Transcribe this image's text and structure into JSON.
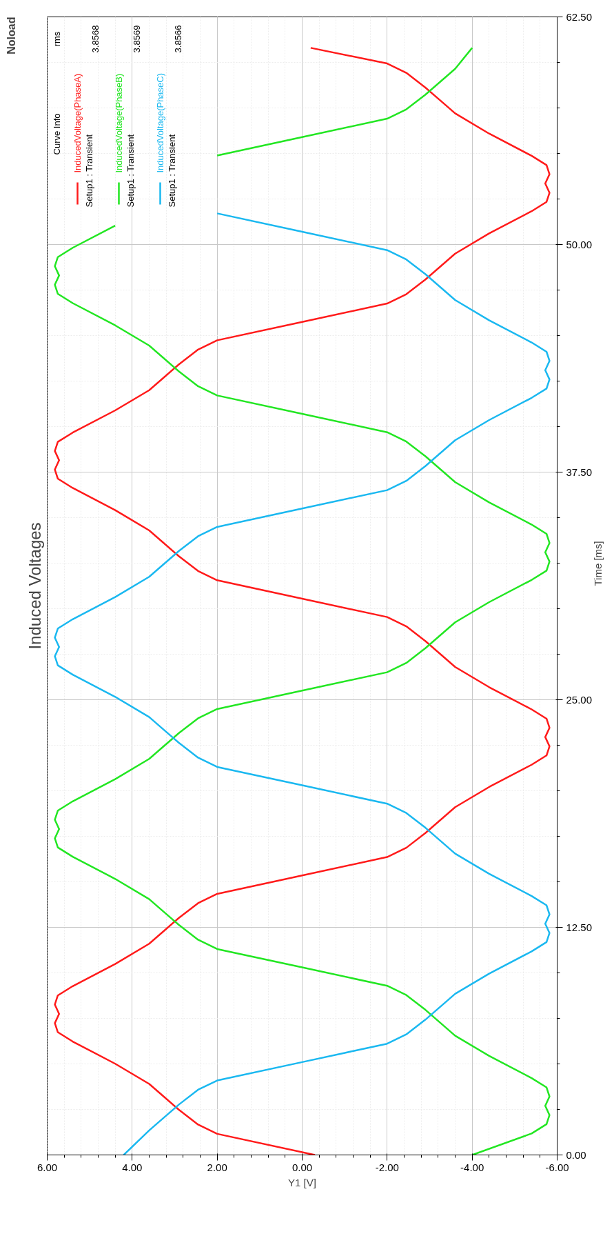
{
  "chart_data": {
    "type": "line",
    "title": "Induced Voltages",
    "xlabel": "Y1 [V]",
    "ylabel": "Time [ms]",
    "legend_title": "Curve Info",
    "annotations": [
      "Noload",
      "rms",
      "3.8568",
      "3.8569",
      "3.8566",
      "Setup1 : Transient",
      "Setup1 : Transient",
      "Setup1 : Transient"
    ],
    "xlim": [
      6,
      -6
    ],
    "ylim": [
      0,
      62.5
    ],
    "yticks": [
      {
        "value": 0,
        "label": "0.00"
      },
      {
        "value": 12.5,
        "label": "12.50"
      },
      {
        "value": 25,
        "label": "25.00"
      },
      {
        "value": 37.5,
        "label": "37.50"
      },
      {
        "value": 50,
        "label": "50.00"
      },
      {
        "value": 62.5,
        "label": "62.50"
      }
    ],
    "xticks": [
      {
        "value": -6,
        "label": "-6.00"
      },
      {
        "value": -4,
        "label": "-4.00"
      },
      {
        "value": -2,
        "label": "-2.00"
      },
      {
        "value": 0,
        "label": "0.00"
      },
      {
        "value": 2,
        "label": "2.00"
      },
      {
        "value": 4,
        "label": "4.00"
      },
      {
        "value": 6,
        "label": "6.00"
      }
    ],
    "grid": true,
    "legend": "top left",
    "series": [
      {
        "name": "InducedVoltage(PhaseA)",
        "color": "#ff1a1a",
        "values": [
          0,
          1.16,
          1.67,
          2.48,
          3.19,
          3.9,
          5.01,
          6.23,
          6.74,
          7.24,
          7.75,
          8.26,
          8.76,
          9.27,
          10.49,
          11.6,
          12.31,
          13.02,
          13.83,
          14.34,
          15.35,
          16.36,
          16.87,
          17.68,
          18.39,
          19.1,
          20.21,
          21.43,
          21.94,
          22.44,
          22.95,
          23.46,
          23.96,
          24.47,
          25.69,
          26.8,
          27.51,
          28.22,
          29.03,
          29.54,
          30.55,
          31.56,
          32.07,
          32.88,
          33.59,
          34.3,
          35.41,
          36.63,
          37.14,
          37.64,
          38.15,
          38.66,
          39.16,
          39.67,
          40.89,
          42.0,
          42.71,
          43.42,
          44.23,
          44.74,
          45.75,
          46.76,
          47.27,
          48.08,
          48.79,
          49.5,
          50.61,
          51.83,
          52.34,
          52.84,
          53.35,
          53.86,
          54.36,
          54.87,
          56.09,
          57.2,
          57.91,
          58.62,
          59.43,
          59.94,
          60.8
        ],
        "x": [
          -0.3,
          2.0,
          2.45,
          2.9,
          3.25,
          3.6,
          4.4,
          5.4,
          5.75,
          5.82,
          5.72,
          5.82,
          5.75,
          5.4,
          4.4,
          3.6,
          3.25,
          2.9,
          2.45,
          2.0,
          0,
          -2.0,
          -2.45,
          -2.9,
          -3.25,
          -3.6,
          -4.4,
          -5.4,
          -5.75,
          -5.82,
          -5.72,
          -5.82,
          -5.75,
          -5.4,
          -4.4,
          -3.6,
          -3.25,
          -2.9,
          -2.45,
          -2.0,
          0,
          2.0,
          2.45,
          2.9,
          3.25,
          3.6,
          4.4,
          5.4,
          5.75,
          5.82,
          5.72,
          5.82,
          5.75,
          5.4,
          4.4,
          3.6,
          3.25,
          2.9,
          2.45,
          2.0,
          0,
          -2.0,
          -2.45,
          -2.9,
          -3.25,
          -3.6,
          -4.4,
          -5.4,
          -5.75,
          -5.82,
          -5.72,
          -5.82,
          -5.75,
          -5.4,
          -4.4,
          -3.6,
          -3.25,
          -2.9,
          -2.45,
          -2.0,
          -0.2
        ]
      },
      {
        "name": "InducedVoltage(PhaseB)",
        "color": "#22e622",
        "values": [
          0,
          1.18,
          1.69,
          2.19,
          2.7,
          3.21,
          3.71,
          4.22,
          5.44,
          6.55,
          7.26,
          7.97,
          8.78,
          9.29,
          10.3,
          11.31,
          11.82,
          12.63,
          13.34,
          14.05,
          15.16,
          16.38,
          16.89,
          17.39,
          17.9,
          18.41,
          18.91,
          19.42,
          20.64,
          21.75,
          22.46,
          23.17,
          23.98,
          24.49,
          25.5,
          26.51,
          27.02,
          27.83,
          28.54,
          29.25,
          30.36,
          31.58,
          32.09,
          32.59,
          33.1,
          33.61,
          34.11,
          34.62,
          35.84,
          36.95,
          37.66,
          38.37,
          39.18,
          39.69,
          40.7,
          41.71,
          42.22,
          43.03,
          43.74,
          44.45,
          45.56,
          46.78,
          47.29,
          47.79,
          48.3,
          48.81,
          49.31,
          49.82,
          51.04,
          null,
          54.89,
          55.9,
          56.91,
          57.42,
          58.23,
          58.94,
          59.65,
          60.8
        ],
        "x": [
          -4.0,
          -5.4,
          -5.75,
          -5.82,
          -5.72,
          -5.82,
          -5.75,
          -5.4,
          -4.4,
          -3.6,
          -3.25,
          -2.9,
          -2.45,
          -2.0,
          0,
          2.0,
          2.45,
          2.9,
          3.25,
          3.6,
          4.4,
          5.4,
          5.75,
          5.82,
          5.72,
          5.82,
          5.75,
          5.4,
          4.4,
          3.6,
          3.25,
          2.9,
          2.45,
          2.0,
          0,
          -2.0,
          -2.45,
          -2.9,
          -3.25,
          -3.6,
          -4.4,
          -5.4,
          -5.75,
          -5.82,
          -5.72,
          -5.82,
          -5.75,
          -5.4,
          -4.4,
          -3.6,
          -3.25,
          -2.9,
          -2.45,
          -2.0,
          0,
          2.0,
          2.45,
          2.9,
          3.25,
          3.6,
          4.4,
          5.4,
          5.75,
          5.82,
          5.72,
          5.82,
          5.75,
          5.4,
          4.4,
          3.6,
          2.0,
          0,
          -2.0,
          -2.45,
          -2.9,
          -3.25,
          -3.6,
          -4.0
        ]
      },
      {
        "name": "InducedVoltage(PhaseC)",
        "color": "#1ab8f0",
        "values": [
          0,
          1.35,
          2.06,
          2.77,
          3.58,
          4.09,
          5.1,
          6.11,
          6.62,
          7.43,
          8.14,
          8.85,
          9.96,
          11.18,
          11.69,
          12.19,
          12.7,
          13.21,
          13.71,
          14.22,
          15.44,
          16.55,
          17.26,
          17.97,
          18.78,
          19.29,
          20.3,
          21.31,
          21.82,
          22.63,
          23.34,
          24.05,
          25.16,
          26.38,
          26.89,
          27.39,
          27.9,
          28.41,
          28.91,
          29.42,
          30.64,
          31.75,
          32.46,
          33.17,
          33.98,
          34.49,
          35.5,
          36.51,
          37.02,
          37.83,
          38.54,
          39.25,
          40.36,
          41.58,
          42.09,
          42.59,
          43.1,
          43.61,
          44.11,
          44.62,
          45.84,
          46.95,
          47.66,
          48.37,
          49.18,
          49.69,
          50.7,
          51.71
        ],
        "x": [
          4.2,
          3.6,
          3.25,
          2.9,
          2.45,
          2.0,
          0,
          -2.0,
          -2.45,
          -2.9,
          -3.25,
          -3.6,
          -4.4,
          -5.4,
          -5.75,
          -5.82,
          -5.72,
          -5.82,
          -5.75,
          -5.4,
          -4.4,
          -3.6,
          -3.25,
          -2.9,
          -2.45,
          -2.0,
          0,
          2.0,
          2.45,
          2.9,
          3.25,
          3.6,
          4.4,
          5.4,
          5.75,
          5.82,
          5.72,
          5.82,
          5.75,
          5.4,
          4.4,
          3.6,
          3.25,
          2.9,
          2.45,
          2.0,
          0,
          -2.0,
          -2.45,
          -2.9,
          -3.25,
          -3.6,
          -4.4,
          -5.4,
          -5.75,
          -5.82,
          -5.72,
          -5.82,
          -5.75,
          -5.4,
          -4.4,
          -3.6,
          -3.25,
          -2.9,
          -2.45,
          -2.0,
          0,
          2.0
        ]
      }
    ]
  }
}
